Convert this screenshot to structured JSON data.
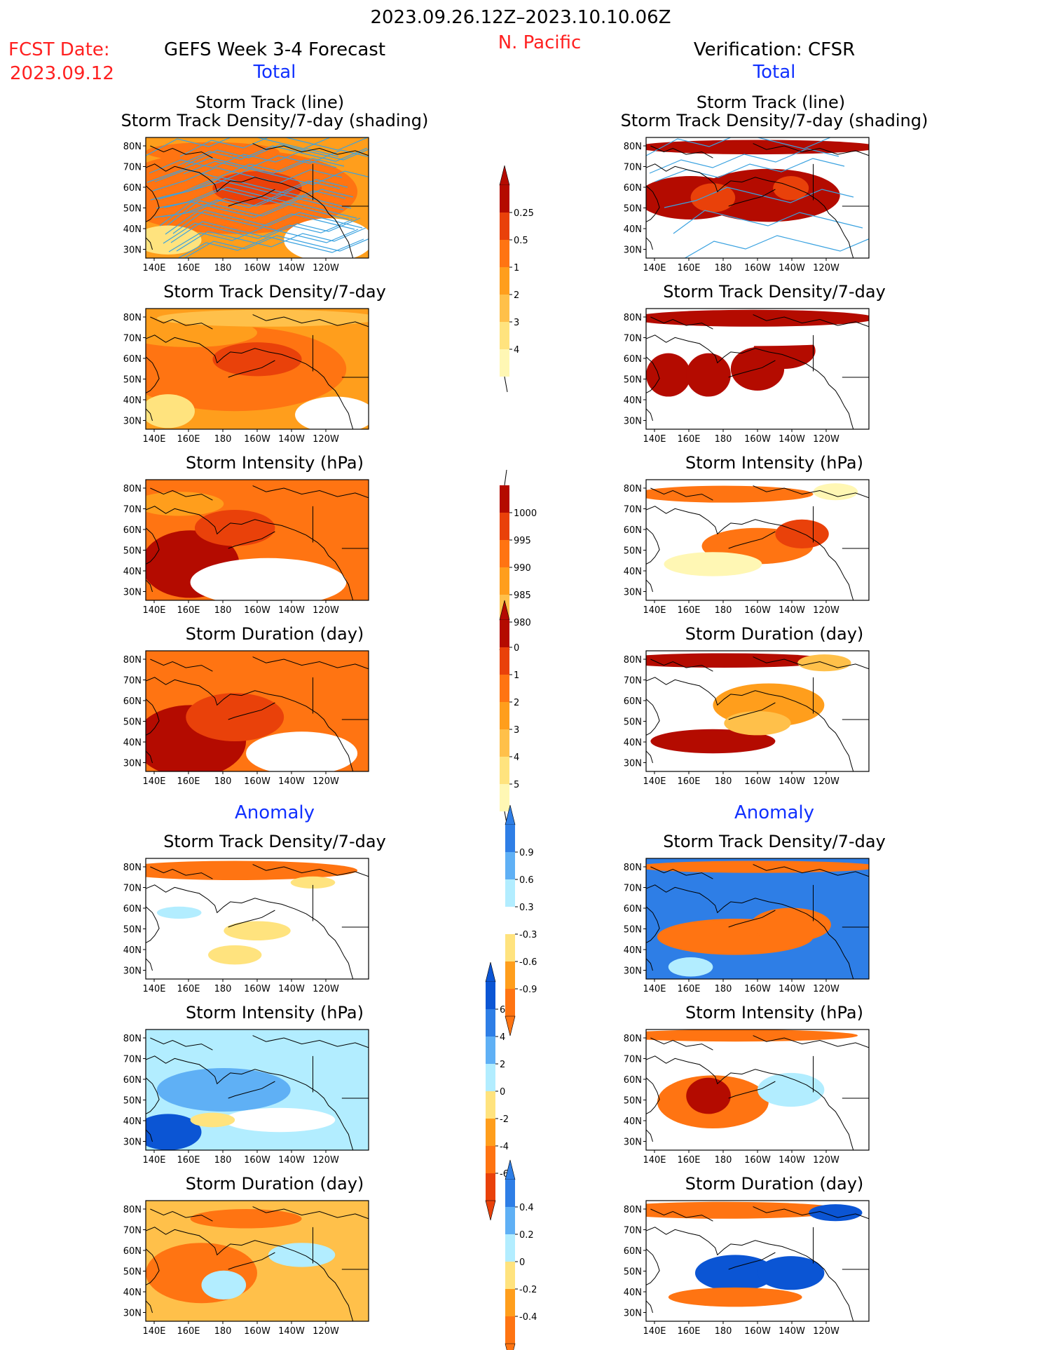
{
  "header": {
    "period": "2023.09.26.12Z–2023.10.10.06Z",
    "region": "N. Pacific",
    "fcst_label": "FCST Date:",
    "fcst_date": "2023.09.12",
    "left_model": "GEFS Week 3-4 Forecast",
    "right_model": "Verification: CFSR",
    "total_label": "Total",
    "anomaly_label": "Anomaly"
  },
  "panel_titles": {
    "track_line": "Storm Track (line)",
    "track_shading": "Storm Track Density/7-day (shading)",
    "density": "Storm Track Density/7-day",
    "intensity": "Storm Intensity (hPa)",
    "duration": "Storm Duration (day)"
  },
  "colors": {
    "lightyellow": "#fff7b4",
    "yellow": "#ffe37e",
    "lightorange": "#ffc04a",
    "orange": "#ff9e1c",
    "darkorange": "#ff7412",
    "red": "#e9410a",
    "darkred": "#b40b00",
    "lightblue": "#b2edff",
    "medblue": "#5fb0f5",
    "blue": "#2e7ee6",
    "darkblue": "#0b55d4",
    "track_line": "#3aa2e0"
  },
  "chart_data": {
    "type": "heatmap",
    "map_extent": {
      "lon": [
        140,
        240
      ],
      "lat": [
        25,
        85
      ]
    },
    "axes": {
      "x_ticks": [
        "140E",
        "160E",
        "180",
        "160W",
        "140W",
        "120W"
      ],
      "y_ticks": [
        "80N",
        "70N",
        "60N",
        "50N",
        "40N",
        "30N"
      ]
    },
    "colorbars": [
      {
        "name": "total_density",
        "labels": [
          "0.25",
          "0.5",
          "1",
          "2",
          "3",
          "4"
        ]
      },
      {
        "name": "total_intensity",
        "labels": [
          "1000",
          "995",
          "990",
          "985",
          "980"
        ]
      },
      {
        "name": "total_duration",
        "labels": [
          "0",
          "1",
          "2",
          "3",
          "4",
          "5"
        ]
      },
      {
        "name": "anom_density",
        "labels": [
          "0.9",
          "0.6",
          "0.3",
          "-0.3",
          "-0.6",
          "-0.9"
        ]
      },
      {
        "name": "anom_intensity",
        "labels": [
          "6",
          "4",
          "2",
          "0",
          "-2",
          "-4",
          "-6"
        ]
      },
      {
        "name": "anom_duration",
        "labels": [
          "0.4",
          "0.2",
          "0",
          "-0.2",
          "-0.4"
        ]
      }
    ]
  }
}
